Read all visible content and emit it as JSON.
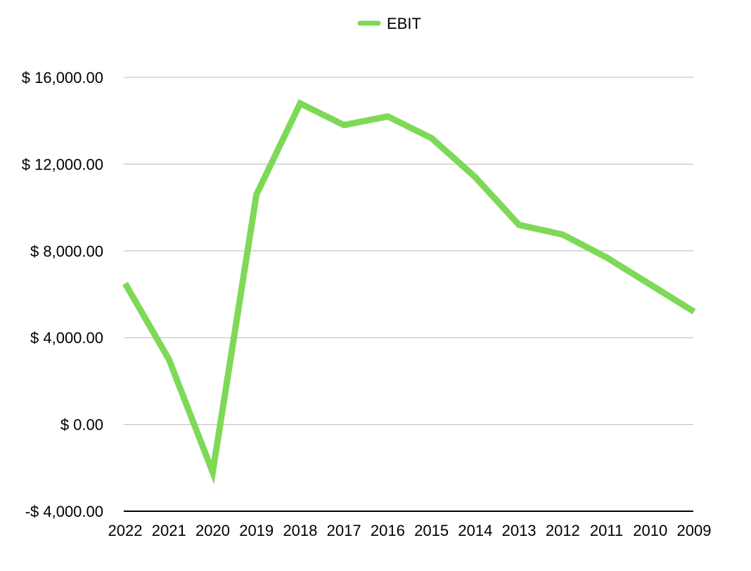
{
  "chart_data": {
    "type": "line",
    "title": "",
    "xlabel": "",
    "ylabel": "",
    "categories": [
      "2022",
      "2021",
      "2020",
      "2019",
      "2018",
      "2017",
      "2016",
      "2015",
      "2014",
      "2013",
      "2012",
      "2011",
      "2010",
      "2009"
    ],
    "series": [
      {
        "name": "EBIT",
        "color": "#7ed957",
        "values": [
          6500,
          3000,
          -2200,
          10600,
          14800,
          13800,
          14200,
          13200,
          11400,
          9200,
          8750,
          7700,
          6450,
          5200
        ]
      }
    ],
    "y_ticks": [
      -4000,
      0,
      4000,
      8000,
      12000,
      16000
    ],
    "y_tick_labels": [
      "-$ 4,000.00",
      "$ 0.00",
      "$ 4,000.00",
      "$ 8,000.00",
      "$ 12,000.00",
      "$ 16,000.00"
    ],
    "ylim": [
      -4000,
      16000
    ],
    "grid": true,
    "legend_position": "top-center"
  }
}
